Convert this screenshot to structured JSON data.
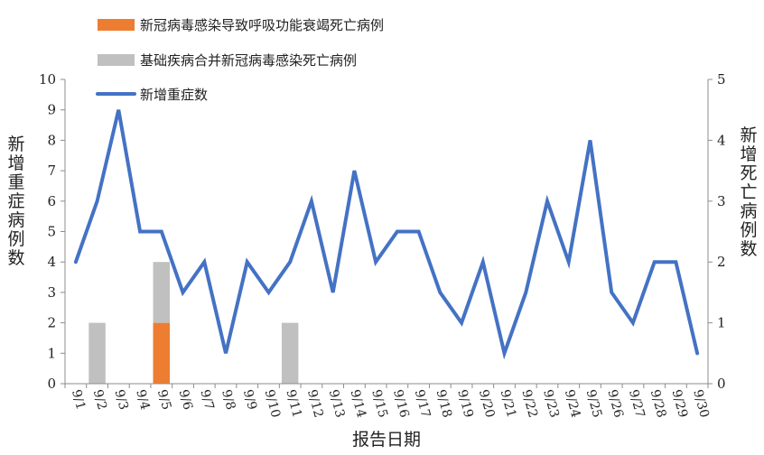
{
  "chart_data": {
    "type": "bar+line",
    "categories": [
      "9/1",
      "9/2",
      "9/3",
      "9/4",
      "9/5",
      "9/6",
      "9/7",
      "9/8",
      "9/9",
      "9/10",
      "9/11",
      "9/12",
      "9/13",
      "9/14",
      "9/15",
      "9/16",
      "9/17",
      "9/18",
      "9/19",
      "9/20",
      "9/21",
      "9/22",
      "9/23",
      "9/24",
      "9/25",
      "9/26",
      "9/27",
      "9/28",
      "9/29",
      "9/30"
    ],
    "series": [
      {
        "name": "新冠病毒感染导致呼吸功能衰竭死亡病例",
        "type": "bar",
        "axis": "right",
        "stack": "deaths",
        "color": "#ED7D31",
        "values": [
          0,
          0,
          0,
          0,
          1,
          0,
          0,
          0,
          0,
          0,
          0,
          0,
          0,
          0,
          0,
          0,
          0,
          0,
          0,
          0,
          0,
          0,
          0,
          0,
          0,
          0,
          0,
          0,
          0,
          0
        ]
      },
      {
        "name": "基础疾病合并新冠病毒感染死亡病例",
        "type": "bar",
        "axis": "right",
        "stack": "deaths",
        "color": "#C0C0C0",
        "values": [
          0,
          1,
          0,
          0,
          1,
          0,
          0,
          0,
          0,
          0,
          1,
          0,
          0,
          0,
          0,
          0,
          0,
          0,
          0,
          0,
          0,
          0,
          0,
          0,
          0,
          0,
          0,
          0,
          0,
          0
        ]
      },
      {
        "name": "新增重症数",
        "type": "line",
        "axis": "left",
        "color": "#4472C4",
        "values": [
          4,
          6,
          9,
          5,
          5,
          3,
          4,
          1,
          4,
          3,
          4,
          6,
          3,
          7,
          4,
          5,
          5,
          3,
          2,
          4,
          1,
          3,
          6,
          4,
          8,
          3,
          2,
          4,
          4,
          1
        ]
      }
    ],
    "xlabel": "报告日期",
    "ylabel": "新增重症病例数",
    "y2label": "新增死亡病例数",
    "ylim": [
      0,
      10
    ],
    "y2lim": [
      0,
      5
    ],
    "yticks": [
      "0",
      "1",
      "2",
      "3",
      "4",
      "5",
      "6",
      "7",
      "8",
      "9",
      "10"
    ],
    "y2ticks": [
      "0",
      "1",
      "2",
      "3",
      "4",
      "5"
    ],
    "grid": false,
    "legend": "top-left"
  }
}
